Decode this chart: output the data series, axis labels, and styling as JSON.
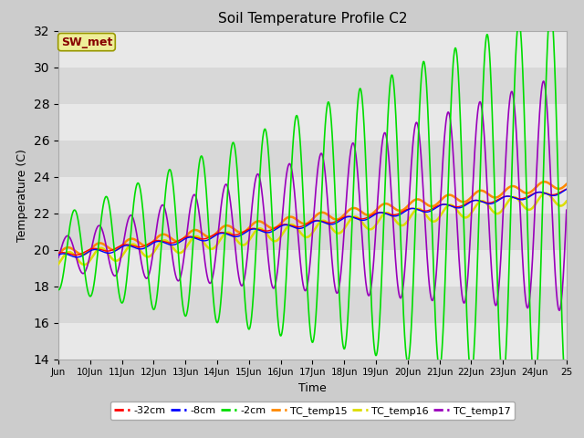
{
  "title": "Soil Temperature Profile C2",
  "xlabel": "Time",
  "ylabel": "Temperature (C)",
  "ylim": [
    14,
    32
  ],
  "yticks": [
    14,
    16,
    18,
    20,
    22,
    24,
    26,
    28,
    30,
    32
  ],
  "xlim_days": [
    9,
    25
  ],
  "xtick_labels": [
    "Jun",
    "10Jun",
    "11Jun",
    "12Jun",
    "13Jun",
    "14Jun",
    "15Jun",
    "16Jun",
    "17Jun",
    "18Jun",
    "19Jun",
    "20Jun",
    "21Jun",
    "22Jun",
    "23Jun",
    "24Jun",
    "25"
  ],
  "xtick_positions": [
    9,
    10,
    11,
    12,
    13,
    14,
    15,
    16,
    17,
    18,
    19,
    20,
    21,
    22,
    23,
    24,
    25
  ],
  "colors": {
    "neg32cm": "#ff0000",
    "neg8cm": "#0000ff",
    "neg2cm": "#00dd00",
    "tc15": "#ff8800",
    "tc16": "#dddd00",
    "tc17": "#9900bb"
  },
  "legend_labels": [
    "-32cm",
    "-8cm",
    "-2cm",
    "TC_temp15",
    "TC_temp16",
    "TC_temp17"
  ],
  "sw_met_box": {
    "text": "SW_met",
    "facecolor": "#eeee99",
    "edgecolor": "#999900",
    "textcolor": "#880000"
  },
  "fig_bg": "#cccccc",
  "plot_bg_dark": "#d8d8d8",
  "plot_bg_light": "#e8e8e8"
}
